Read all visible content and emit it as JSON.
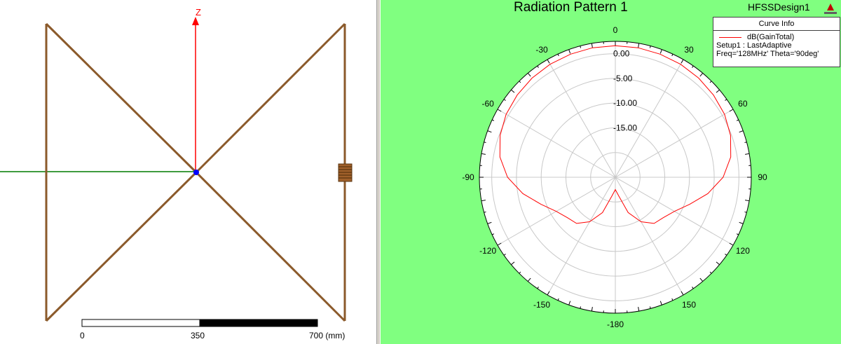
{
  "geometry_view": {
    "axis_label": "Z",
    "scale_bar": {
      "labels": [
        "0",
        "350",
        "700 (mm)"
      ]
    }
  },
  "plot": {
    "title": "Radiation Pattern 1",
    "design_name": "HFSSDesign1",
    "legend": {
      "header": "Curve Info",
      "curve_name": "dB(GainTotal)",
      "setup": "Setup1 : LastAdaptive",
      "params": "Freq='128MHz' Theta='90deg'"
    },
    "colors": {
      "background": "#80ff80",
      "curve": "#ff0000"
    }
  },
  "chart_data": {
    "type": "line",
    "polar": true,
    "title": "Radiation Pattern 1",
    "series": [
      {
        "name": "dB(GainTotal)",
        "phi_deg": [
          0,
          10,
          20,
          30,
          40,
          50,
          60,
          70,
          80,
          90,
          100,
          110,
          120,
          130,
          140,
          150,
          160,
          170,
          180,
          190,
          200,
          210,
          220,
          230,
          240,
          250,
          260,
          270,
          280,
          290,
          300,
          310,
          320,
          330,
          340,
          350
        ],
        "gain_db": [
          1.6,
          1.6,
          1.5,
          1.4,
          1.2,
          0.9,
          0.5,
          -0.2,
          -1.3,
          -3.2,
          -6.0,
          -9.0,
          -11.2,
          -12.3,
          -12.8,
          -14.6,
          -17.4,
          -21.2,
          -22.5,
          -21.2,
          -17.4,
          -14.6,
          -12.8,
          -12.3,
          -11.2,
          -9.0,
          -6.0,
          -3.2,
          -1.3,
          -0.2,
          0.5,
          0.9,
          1.2,
          1.4,
          1.5,
          1.6
        ]
      }
    ],
    "radial_ticks": [
      "0.00",
      "-5.00",
      "-10.00",
      "-15.00"
    ],
    "radial_range": [
      -25,
      2.5
    ],
    "angle_labels": [
      "0",
      "30",
      "60",
      "90",
      "120",
      "150",
      "-180",
      "-150",
      "-120",
      "-90",
      "-60",
      "-30"
    ],
    "angle_values": [
      0,
      30,
      60,
      90,
      120,
      150,
      180,
      210,
      240,
      270,
      300,
      330
    ],
    "grid": true,
    "legend_position": "top-right"
  }
}
